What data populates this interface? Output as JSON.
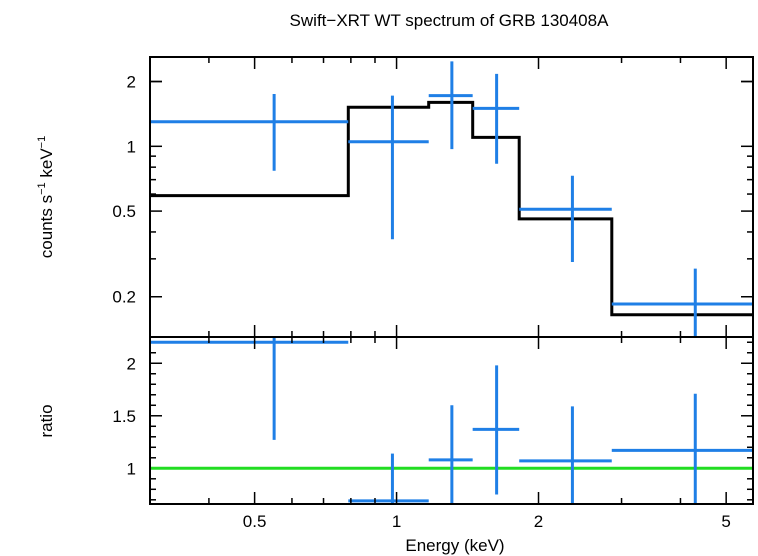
{
  "chart_data": {
    "title": "Swift−XRT WT spectrum of GRB 130408A",
    "colors": {
      "data": "#1f7fe6",
      "model": "#000000",
      "ratio_line": "#22dd22"
    },
    "x_axis": {
      "label": "Energy (keV)",
      "scale": "log",
      "range": [
        0.3,
        5.7
      ],
      "major_ticks": [
        {
          "value": 0.5,
          "label": "0.5"
        },
        {
          "value": 1,
          "label": "1"
        },
        {
          "value": 2,
          "label": "2"
        },
        {
          "value": 5,
          "label": "5"
        }
      ]
    },
    "panels": [
      {
        "type": "step-with-errorbars",
        "ylabel_pre": "counts s",
        "ylabel_exp1": "−1",
        "ylabel_mid": " keV",
        "ylabel_exp2": "−1",
        "yscale": "log",
        "ylim": [
          0.13,
          2.6
        ],
        "y_ticks": [
          {
            "value": 0.2,
            "label": "0.2"
          },
          {
            "value": 0.5,
            "label": "0.5"
          },
          {
            "value": 1,
            "label": "1"
          },
          {
            "value": 2,
            "label": "2"
          }
        ],
        "data": [
          {
            "xlo": 0.3,
            "xhi": 0.79,
            "x": 0.55,
            "y": 1.3,
            "ylo": 0.77,
            "yhi": 1.75
          },
          {
            "xlo": 0.79,
            "xhi": 1.17,
            "x": 0.98,
            "y": 1.05,
            "ylo": 0.37,
            "yhi": 1.72
          },
          {
            "xlo": 1.17,
            "xhi": 1.45,
            "x": 1.31,
            "y": 1.72,
            "ylo": 0.97,
            "yhi": 2.48
          },
          {
            "xlo": 1.45,
            "xhi": 1.82,
            "x": 1.63,
            "y": 1.5,
            "ylo": 0.83,
            "yhi": 2.17
          },
          {
            "xlo": 1.82,
            "xhi": 2.86,
            "x": 2.36,
            "y": 0.51,
            "ylo": 0.29,
            "yhi": 0.73
          },
          {
            "xlo": 2.86,
            "xhi": 5.7,
            "x": 4.3,
            "y": 0.185,
            "ylo": 0.1,
            "yhi": 0.27
          }
        ],
        "model": [
          {
            "xlo": 0.3,
            "xhi": 0.79,
            "y": 0.59
          },
          {
            "xlo": 0.79,
            "xhi": 1.17,
            "y": 1.52
          },
          {
            "xlo": 1.17,
            "xhi": 1.45,
            "y": 1.6
          },
          {
            "xlo": 1.45,
            "xhi": 1.82,
            "y": 1.1
          },
          {
            "xlo": 1.82,
            "xhi": 2.86,
            "y": 0.46
          },
          {
            "xlo": 2.86,
            "xhi": 5.7,
            "y": 0.165
          }
        ]
      },
      {
        "type": "ratio",
        "ylabel": "ratio",
        "yscale": "linear",
        "ylim": [
          0.66,
          2.25
        ],
        "y_ticks": [
          {
            "value": 1,
            "label": "1"
          },
          {
            "value": 1.5,
            "label": "1.5"
          },
          {
            "value": 2,
            "label": "2"
          }
        ],
        "reference": 1.0,
        "data": [
          {
            "xlo": 0.3,
            "xhi": 0.79,
            "x": 0.55,
            "y": 2.2,
            "ylo": 1.27,
            "yhi": 2.25
          },
          {
            "xlo": 0.79,
            "xhi": 1.17,
            "x": 0.98,
            "y": 0.69,
            "ylo": 0.66,
            "yhi": 1.14
          },
          {
            "xlo": 1.17,
            "xhi": 1.45,
            "x": 1.31,
            "y": 1.08,
            "ylo": 0.66,
            "yhi": 1.6
          },
          {
            "xlo": 1.45,
            "xhi": 1.82,
            "x": 1.63,
            "y": 1.37,
            "ylo": 0.75,
            "yhi": 1.98
          },
          {
            "xlo": 1.82,
            "xhi": 2.86,
            "x": 2.36,
            "y": 1.07,
            "ylo": 0.66,
            "yhi": 1.59
          },
          {
            "xlo": 2.86,
            "xhi": 5.7,
            "x": 4.3,
            "y": 1.17,
            "ylo": 0.66,
            "yhi": 1.71
          }
        ]
      }
    ]
  }
}
